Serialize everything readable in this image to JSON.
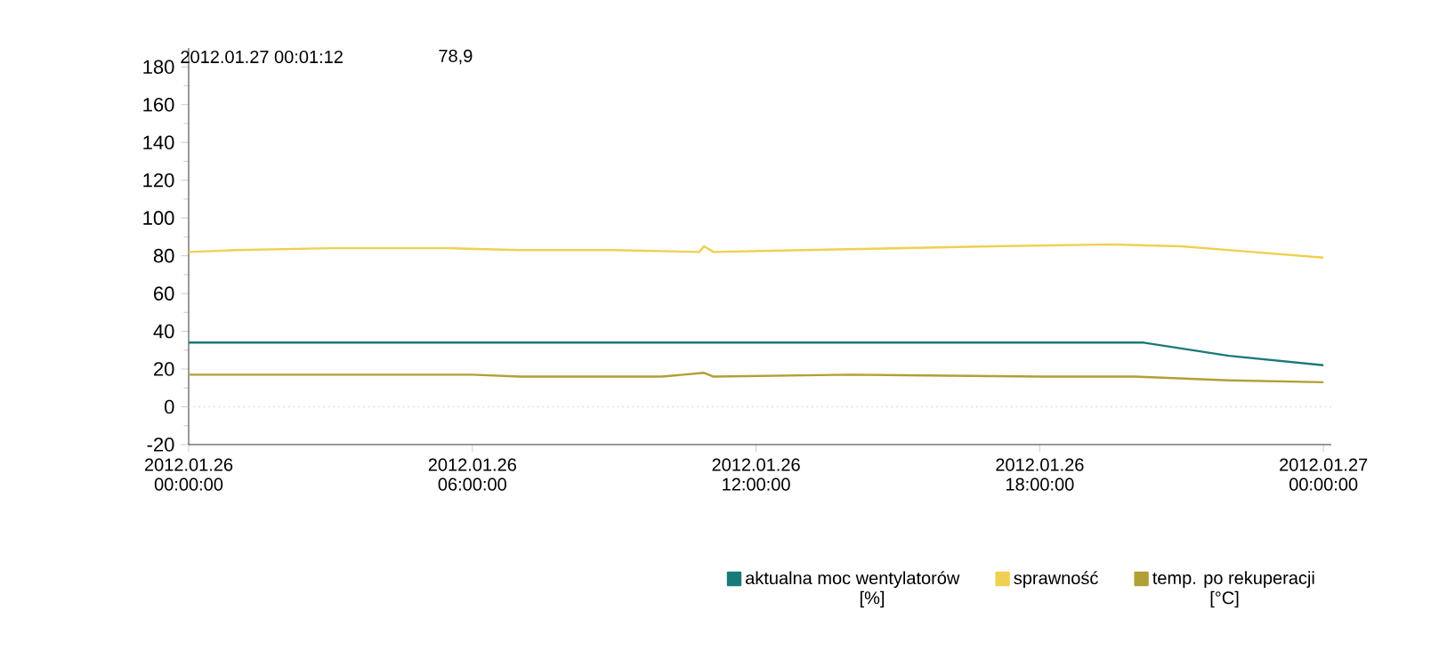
{
  "chart_data": {
    "type": "line",
    "annotations": [
      "2012.01.27 00:01:12",
      "78,9",
      "[%]",
      "[°C]"
    ],
    "xlim": [
      "2012-01-26T00:00",
      "2012-01-27T00:10"
    ],
    "xticks": [
      {
        "value": "2012-01-26T00:00",
        "label": "2012.01.26 00:00:00"
      },
      {
        "value": "2012-01-26T06:00",
        "label": "2012.01.26 06:00:00"
      },
      {
        "value": "2012-01-26T12:00",
        "label": "2012.01.26 12:00:00"
      },
      {
        "value": "2012-01-26T18:00",
        "label": "2012.01.26 18:00:00"
      },
      {
        "value": "2012-01-27T00:00",
        "label": "2012.01.27 00:00:00"
      }
    ],
    "ylim": [
      -20,
      190
    ],
    "yticks": [
      -20,
      0,
      20,
      40,
      60,
      80,
      100,
      120,
      140,
      160,
      180
    ],
    "legend": "bottom",
    "marker": "none",
    "line_style": "solid",
    "ref_lines": [
      {
        "axis": "y",
        "value": 0,
        "color": "#dddddd",
        "line_style": "dotted"
      }
    ],
    "series": [
      {
        "name": "aktualna moc wentylatorów",
        "color": "#1a7a78",
        "x": [
          "2012-01-26T00:00",
          "2012-01-26T20:12",
          "2012-01-26T22:00",
          "2012-01-27T00:00"
        ],
        "values": [
          34,
          34,
          27,
          22
        ]
      },
      {
        "name": "sprawność",
        "color": "#f0d050",
        "x": [
          "2012-01-26T00:00",
          "2012-01-26T01:00",
          "2012-01-26T03:00",
          "2012-01-26T05:30",
          "2012-01-26T07:00",
          "2012-01-26T09:00",
          "2012-01-26T10:48",
          "2012-01-26T10:54",
          "2012-01-26T11:06",
          "2012-01-26T13:00",
          "2012-01-26T15:00",
          "2012-01-26T17:00",
          "2012-01-26T19:30",
          "2012-01-26T21:00",
          "2012-01-26T22:30",
          "2012-01-27T00:00"
        ],
        "values": [
          82,
          83,
          84,
          84,
          83,
          83,
          82,
          85,
          82,
          83,
          84,
          85,
          86,
          85,
          82,
          79
        ]
      },
      {
        "name": "temp. po rekuperacji",
        "color": "#b0a035",
        "x": [
          "2012-01-26T00:00",
          "2012-01-26T06:00",
          "2012-01-26T07:00",
          "2012-01-26T10:00",
          "2012-01-26T10:54",
          "2012-01-26T11:06",
          "2012-01-26T14:00",
          "2012-01-26T18:00",
          "2012-01-26T20:00",
          "2012-01-26T22:00",
          "2012-01-27T00:00"
        ],
        "values": [
          17,
          17,
          16,
          16,
          18,
          16,
          17,
          16,
          16,
          14,
          13
        ]
      }
    ]
  }
}
